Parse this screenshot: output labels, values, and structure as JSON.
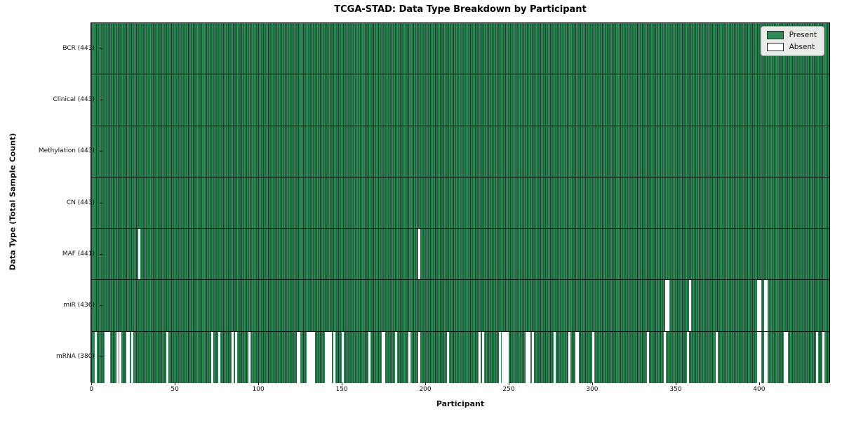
{
  "chart_data": {
    "type": "heatmap",
    "title": "TCGA-STAD: Data Type Breakdown by Participant",
    "xlabel": "Participant",
    "ylabel": "Data Type (Total Sample Count)",
    "n_participants": 443,
    "x_axis": {
      "ticks": [
        0,
        50,
        100,
        150,
        200,
        250,
        300,
        350,
        400
      ],
      "range": [
        0,
        443
      ]
    },
    "legend_position": "upper right",
    "grid": false,
    "colors": {
      "present": "#2f8b58",
      "absent": "#ffffff",
      "bar_edge": "#16402a"
    },
    "legend": [
      {
        "label": "Present",
        "color": "#2f8b58"
      },
      {
        "label": "Absent",
        "color": "#ffffff"
      }
    ],
    "rows": [
      {
        "name": "BCR",
        "label": "BCR (443)",
        "present_count": 443,
        "absent_participants": []
      },
      {
        "name": "Clinical",
        "label": "Clinical (443)",
        "present_count": 443,
        "absent_participants": []
      },
      {
        "name": "Methylation",
        "label": "Methylation (443)",
        "present_count": 443,
        "absent_participants": []
      },
      {
        "name": "CN",
        "label": "CN (443)",
        "present_count": 443,
        "absent_participants": []
      },
      {
        "name": "MAF",
        "label": "MAF (441)",
        "present_count": 441,
        "absent_participants": [
          28,
          196
        ]
      },
      {
        "name": "miR",
        "label": "miR (436)",
        "present_count": 436,
        "absent_participants": [
          344,
          345,
          358,
          399,
          400,
          403,
          404
        ]
      },
      {
        "name": "mRNA",
        "label": "mRNA (380)",
        "present_count": 380,
        "absent_participants": [
          2,
          8,
          9,
          10,
          15,
          17,
          21,
          22,
          24,
          45,
          72,
          76,
          84,
          86,
          94,
          123,
          124,
          129,
          130,
          131,
          132,
          133,
          140,
          141,
          142,
          143,
          145,
          150,
          166,
          174,
          175,
          182,
          190,
          196,
          213,
          232,
          234,
          244,
          246,
          247,
          248,
          249,
          260,
          261,
          262,
          264,
          277,
          286,
          290,
          291,
          300,
          333,
          343,
          357,
          374,
          399,
          400,
          403,
          404,
          415,
          416,
          434,
          438
        ]
      }
    ]
  }
}
